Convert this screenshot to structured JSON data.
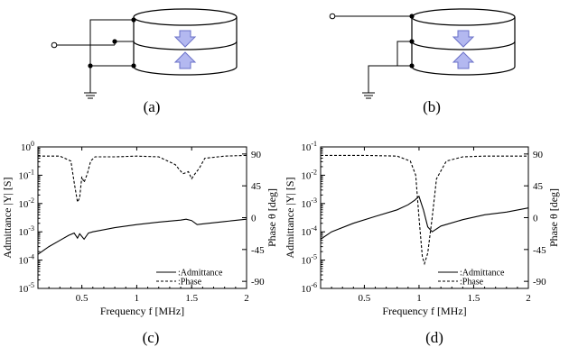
{
  "panels": {
    "a": {
      "caption": "(a)"
    },
    "b": {
      "caption": "(b)"
    },
    "c": {
      "caption": "(c)"
    },
    "d": {
      "caption": "(d)"
    }
  },
  "chart_data": [
    {
      "id": "c",
      "type": "line",
      "xlabel": "Frequency f [MHz]",
      "ylabel_left": "Admittance |Y| [S]",
      "ylabel_right": "Phase θ [deg]",
      "xlim": [
        0.1,
        2
      ],
      "ylim_left": [
        1e-05,
        1
      ],
      "ylim_left_scale": "log",
      "ylim_right": [
        -100,
        100
      ],
      "x_ticks": [
        "0.5",
        "1",
        "1.5",
        "2"
      ],
      "y_ticks_left": [
        "10-5",
        "10-4",
        "10-3",
        "10-2",
        "10-1",
        "100"
      ],
      "y_ticks_right": [
        "-90",
        "-45",
        "0",
        "45",
        "90"
      ],
      "legend": [
        ":Admittance",
        ":Phase"
      ],
      "legend_position": "bottom-right",
      "series": [
        {
          "name": ":Admittance",
          "axis": "left",
          "style": "solid",
          "x": [
            0.1,
            0.2,
            0.3,
            0.38,
            0.43,
            0.46,
            0.48,
            0.52,
            0.56,
            0.6,
            0.8,
            1.0,
            1.2,
            1.4,
            1.45,
            1.5,
            1.55,
            1.6,
            1.8,
            2.0
          ],
          "y": [
            0.00016,
            0.0003,
            0.0005,
            0.00075,
            0.0009,
            0.0006,
            0.00085,
            0.00055,
            0.0009,
            0.001,
            0.0014,
            0.0018,
            0.0022,
            0.0026,
            0.0028,
            0.0025,
            0.0018,
            0.0019,
            0.0023,
            0.0028
          ]
        },
        {
          "name": ":Phase",
          "axis": "right",
          "style": "dashed",
          "x": [
            0.1,
            0.3,
            0.4,
            0.43,
            0.46,
            0.48,
            0.5,
            0.52,
            0.55,
            0.58,
            0.62,
            0.8,
            1.0,
            1.2,
            1.35,
            1.42,
            1.47,
            1.5,
            1.53,
            1.57,
            1.62,
            1.8,
            2.0
          ],
          "y": [
            87,
            87,
            80,
            50,
            22,
            28,
            58,
            50,
            62,
            80,
            86,
            86,
            87,
            86,
            75,
            62,
            65,
            55,
            62,
            70,
            84,
            87,
            88
          ]
        }
      ]
    },
    {
      "id": "d",
      "type": "line",
      "xlabel": "Frequency f [MHz]",
      "ylabel_left": "Admittance |Y| [S]",
      "ylabel_right": "Phase θ [deg]",
      "xlim": [
        0.1,
        2
      ],
      "ylim_left": [
        1e-06,
        0.1
      ],
      "ylim_left_scale": "log",
      "ylim_right": [
        -100,
        100
      ],
      "x_ticks": [
        "0.5",
        "1",
        "1.5",
        "2"
      ],
      "y_ticks_left": [
        "10-6",
        "10-5",
        "10-4",
        "10-3",
        "10-2",
        "10-1"
      ],
      "y_ticks_right": [
        "-90",
        "-45",
        "0",
        "45",
        "90"
      ],
      "legend": [
        ":Admittance",
        ":Phase"
      ],
      "legend_position": "bottom-right",
      "series": [
        {
          "name": ":Admittance",
          "axis": "left",
          "style": "solid",
          "x": [
            0.1,
            0.2,
            0.4,
            0.6,
            0.8,
            0.9,
            0.96,
            1.0,
            1.04,
            1.08,
            1.12,
            1.2,
            1.4,
            1.6,
            1.8,
            2.0
          ],
          "y": [
            5.5e-05,
            0.0001,
            0.0002,
            0.00035,
            0.0006,
            0.0009,
            0.0013,
            0.0018,
            0.0006,
            0.00015,
            0.0001,
            0.00016,
            0.00027,
            0.0004,
            0.0005,
            0.0007
          ]
        },
        {
          "name": ":Phase",
          "axis": "right",
          "style": "dashed",
          "x": [
            0.1,
            0.5,
            0.8,
            0.92,
            0.97,
            1.0,
            1.03,
            1.05,
            1.08,
            1.12,
            1.16,
            1.25,
            1.4,
            1.6,
            1.8,
            2.0
          ],
          "y": [
            88,
            88,
            87,
            80,
            60,
            0,
            -55,
            -65,
            -50,
            0,
            55,
            80,
            86,
            87,
            87,
            87
          ]
        }
      ]
    }
  ]
}
